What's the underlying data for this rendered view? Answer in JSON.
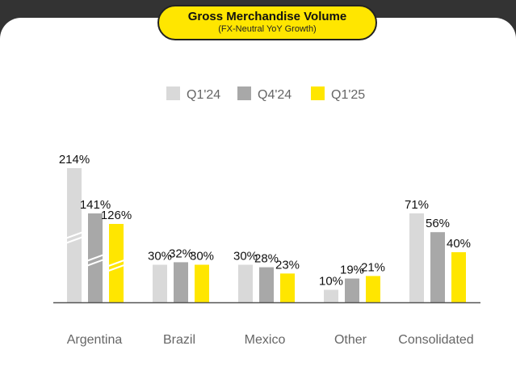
{
  "header": {
    "title": "Gross Merchandise Volume",
    "subtitle": "(FX-Neutral YoY Growth)"
  },
  "colors": {
    "background": "#333333",
    "card": "#ffffff",
    "accent": "#ffe600"
  },
  "chart_data": {
    "type": "bar",
    "categories": [
      "Argentina",
      "Brazil",
      "Mexico",
      "Other",
      "Consolidated"
    ],
    "series": [
      {
        "name": "Q1'24",
        "color": "#d9d9d9",
        "values": [
          214,
          30,
          30,
          10,
          71
        ],
        "labels": [
          "214%",
          "30%",
          "30%",
          "10%",
          "71%"
        ]
      },
      {
        "name": "Q4'24",
        "color": "#a8a8a8",
        "values": [
          141,
          32,
          28,
          19,
          56
        ],
        "labels": [
          "141%",
          "32%",
          "28%",
          "19%",
          "56%"
        ]
      },
      {
        "name": "Q1'25",
        "color": "#ffe600",
        "values": [
          126,
          30,
          23,
          21,
          40
        ],
        "labels": [
          "126%",
          "30%",
          "23%",
          "21%",
          "40%"
        ]
      }
    ],
    "axis_break": "Argentina",
    "legend": "top-center",
    "grid": false
  }
}
